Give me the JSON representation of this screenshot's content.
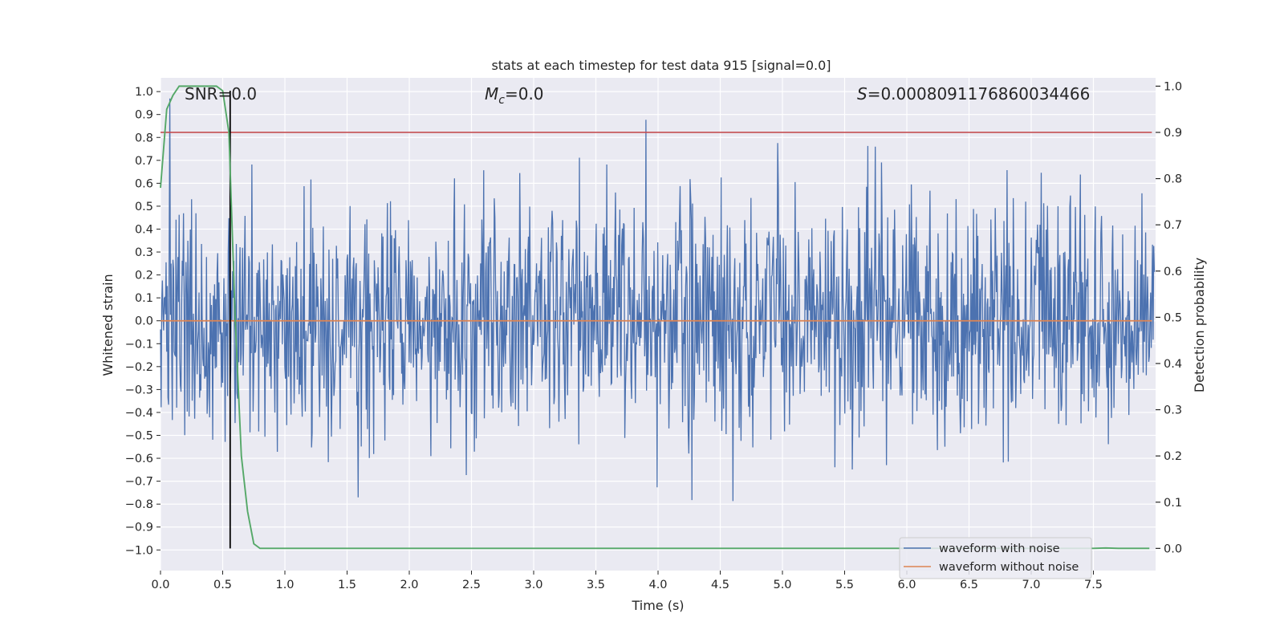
{
  "chart_data": {
    "type": "line",
    "title": "stats at each timestep for test data 915 [signal=0.0]",
    "xlabel": "Time (s)",
    "ylabel_left": "Whitened strain",
    "ylabel_right": "Detection probability",
    "xlim": [
      0.0,
      8.0
    ],
    "ylim_left": [
      -1.09,
      1.06
    ],
    "ylim_right": [
      -0.048,
      1.018
    ],
    "xticks": [
      0.0,
      0.5,
      1.0,
      1.5,
      2.0,
      2.5,
      3.0,
      3.5,
      4.0,
      4.5,
      5.0,
      5.5,
      6.0,
      6.5,
      7.0,
      7.5
    ],
    "xtick_labels": [
      "0.0",
      "0.5",
      "1.0",
      "1.5",
      "2.0",
      "2.5",
      "3.0",
      "3.5",
      "4.0",
      "4.5",
      "5.0",
      "5.5",
      "6.0",
      "6.5",
      "7.0",
      "7.5"
    ],
    "yticks_left": [
      1.0,
      0.9,
      0.8,
      0.7,
      0.6,
      0.5,
      0.4,
      0.3,
      0.2,
      0.1,
      0.0,
      -0.1,
      -0.2,
      -0.3,
      -0.4,
      -0.5,
      -0.6,
      -0.7,
      -0.8,
      -0.9,
      -1.0
    ],
    "ytick_labels_left": [
      "1.0",
      "0.9",
      "0.8",
      "0.7",
      "0.6",
      "0.5",
      "0.4",
      "0.3",
      "0.2",
      "0.1",
      "0.0",
      "−0.1",
      "−0.2",
      "−0.3",
      "−0.4",
      "−0.5",
      "−0.6",
      "−0.7",
      "−0.8",
      "−0.9",
      "−1.0"
    ],
    "yticks_right": [
      1.0,
      0.9,
      0.8,
      0.7,
      0.6,
      0.5,
      0.4,
      0.3,
      0.2,
      0.1,
      0.0
    ],
    "ytick_labels_right": [
      "1.0",
      "0.9",
      "0.8",
      "0.7",
      "0.6",
      "0.5",
      "0.4",
      "0.3",
      "0.2",
      "0.1",
      "0.0"
    ],
    "grid": true,
    "annotations": {
      "snr": "SNR=0.0",
      "mc_symbol": "M",
      "mc_sub": "c",
      "mc_value": "=0.0",
      "s_symbol": "S",
      "s_value": "=0.0008091176860034466"
    },
    "noisy_waveform": {
      "name": "waveform with noise",
      "color": "#4c72b0",
      "sample_count": 1600,
      "seed": 915,
      "approx_envelope": [
        -0.98,
        0.97
      ]
    },
    "clean_waveform": {
      "name": "waveform without noise",
      "color": "#dd8452",
      "constant_value": 0.0
    },
    "threshold_line": {
      "color": "#c44e52",
      "value_right_axis": 0.9
    },
    "event_marker": {
      "color": "#000000",
      "x": 0.56,
      "y_range_right_axis": [
        0.0,
        0.99
      ]
    },
    "detection_probability": {
      "color": "#55a868",
      "x": [
        0.0,
        0.05,
        0.1,
        0.15,
        0.2,
        0.25,
        0.3,
        0.35,
        0.4,
        0.45,
        0.5,
        0.55,
        0.6,
        0.65,
        0.7,
        0.75,
        0.8,
        0.85,
        1.0,
        2.0,
        3.0,
        4.0,
        5.0,
        6.0,
        7.0,
        7.5,
        7.6,
        7.7,
        7.95
      ],
      "y": [
        0.78,
        0.95,
        0.98,
        1.0,
        1.0,
        1.0,
        1.0,
        1.0,
        1.0,
        1.0,
        0.99,
        0.9,
        0.5,
        0.2,
        0.08,
        0.01,
        0.0,
        0.0,
        0.0,
        0.0,
        0.0,
        0.0,
        0.0,
        0.0,
        0.0,
        0.0,
        0.001,
        0.0,
        0.0
      ]
    },
    "legend_position": "lower-right",
    "legend_entries": [
      "waveform with noise",
      "waveform without noise"
    ]
  }
}
